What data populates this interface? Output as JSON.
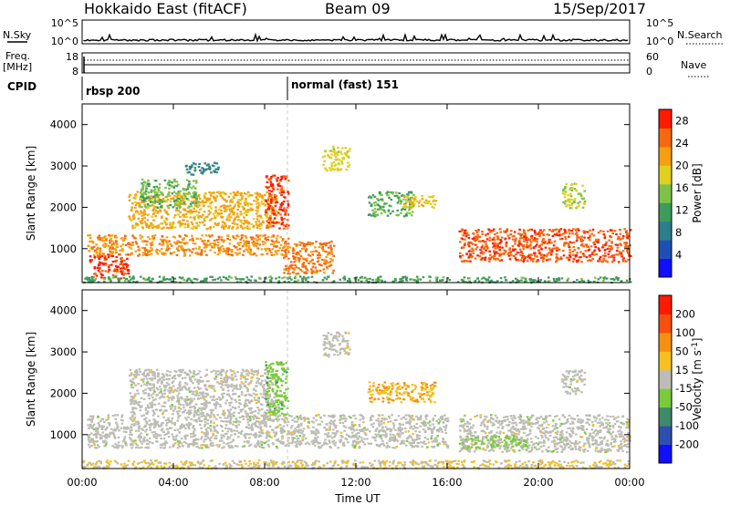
{
  "header": {
    "station": "Hokkaido East (fitACF)",
    "beam": "Beam 09",
    "date": "15/Sep/2017"
  },
  "strip": {
    "nsky_label": "N.Sky",
    "nsearch_label": "N.Search",
    "noise_ticks": [
      "10^5",
      "10^0"
    ],
    "freq_label": "Freq.",
    "freq_unit": "[MHz]",
    "freq_ticks": [
      "18",
      "8"
    ],
    "nave_label": "Nave",
    "nave_ticks": [
      "60",
      "0"
    ],
    "cpid_label": "CPID",
    "cpid_segments": [
      {
        "name": "rbsp 200",
        "start_hour": 0
      },
      {
        "name": "normal (fast) 151",
        "start_hour": 9
      }
    ]
  },
  "axes": {
    "ylabel": "Slant Range [km]",
    "xlabel": "Time UT",
    "x_ticks": [
      "00:00",
      "04:00",
      "08:00",
      "12:00",
      "16:00",
      "20:00",
      "00:00"
    ],
    "y_ticks": [
      "1000",
      "2000",
      "3000",
      "4000"
    ]
  },
  "chart_data": [
    {
      "type": "heatmap",
      "panel": "power",
      "xlim_hours": [
        0,
        24
      ],
      "ylim_km": [
        180,
        4500
      ],
      "colorbar": {
        "label": "Power [dB]",
        "ticks": [
          "4",
          "8",
          "12",
          "16",
          "20",
          "24",
          "28"
        ],
        "colors": [
          "#1010ff",
          "#1f4fb5",
          "#2f7d8a",
          "#3f9a5c",
          "#7fc24a",
          "#e0d020",
          "#f5a010",
          "#f56a10",
          "#ff1a00"
        ],
        "range": [
          0,
          30
        ]
      },
      "regions": [
        {
          "t0": 0.3,
          "t1": 2.0,
          "r0": 300,
          "r1": 900,
          "level": 27
        },
        {
          "t0": 0.2,
          "t1": 9.0,
          "r0": 850,
          "r1": 1350,
          "level": 23
        },
        {
          "t0": 2.0,
          "t1": 8.5,
          "r0": 1500,
          "r1": 2400,
          "level": 21
        },
        {
          "t0": 8.0,
          "t1": 9.0,
          "r0": 1500,
          "r1": 2800,
          "level": 27
        },
        {
          "t0": 8.8,
          "t1": 11.0,
          "r0": 400,
          "r1": 1200,
          "level": 24
        },
        {
          "t0": 4.5,
          "t1": 6.0,
          "r0": 2800,
          "r1": 3100,
          "level": 9
        },
        {
          "t0": 2.5,
          "t1": 5.0,
          "r0": 2000,
          "r1": 2700,
          "level": 14
        },
        {
          "t0": 10.5,
          "t1": 11.7,
          "r0": 2900,
          "r1": 3500,
          "level": 18
        },
        {
          "t0": 12.5,
          "t1": 14.5,
          "r0": 1800,
          "r1": 2400,
          "level": 13
        },
        {
          "t0": 14.0,
          "t1": 15.5,
          "r0": 2000,
          "r1": 2300,
          "level": 19
        },
        {
          "t0": 16.5,
          "t1": 24.0,
          "r0": 700,
          "r1": 1500,
          "level": 26
        },
        {
          "t0": 21.0,
          "t1": 22.0,
          "r0": 2000,
          "r1": 2600,
          "level": 17
        },
        {
          "t0": 0.0,
          "t1": 16.0,
          "r0": 200,
          "r1": 350,
          "level": 12
        },
        {
          "t0": 16.0,
          "t1": 24.0,
          "r0": 200,
          "r1": 330,
          "level": 12
        }
      ]
    },
    {
      "type": "heatmap",
      "panel": "velocity",
      "xlim_hours": [
        0,
        24
      ],
      "ylim_km": [
        180,
        4500
      ],
      "colorbar": {
        "label": "Velocity [m s",
        "label_sup": "-1",
        "label_close": "]",
        "ticks": [
          "200",
          "100",
          "50",
          "15",
          "-15",
          "-50",
          "-100",
          "-200"
        ],
        "colors": [
          "#1010ff",
          "#2f4fb0",
          "#3f8a6a",
          "#7acb3a",
          "#bdbdb5",
          "#f5c020",
          "#f59010",
          "#f55010",
          "#ff1a00"
        ],
        "range": [
          -250,
          250
        ]
      },
      "regions": [
        {
          "t0": 0.2,
          "t1": 16.0,
          "r0": 700,
          "r1": 1500,
          "level": 0
        },
        {
          "t0": 2.0,
          "t1": 8.5,
          "r0": 1500,
          "r1": 2600,
          "level": 0
        },
        {
          "t0": 8.0,
          "t1": 9.0,
          "r0": 1500,
          "r1": 2800,
          "level": -60
        },
        {
          "t0": 10.5,
          "t1": 11.7,
          "r0": 2900,
          "r1": 3500,
          "level": 5
        },
        {
          "t0": 12.5,
          "t1": 15.5,
          "r0": 1800,
          "r1": 2300,
          "level": 80
        },
        {
          "t0": 16.5,
          "t1": 24.0,
          "r0": 600,
          "r1": 1500,
          "level": 0
        },
        {
          "t0": 16.5,
          "t1": 19.5,
          "r0": 700,
          "r1": 1000,
          "level": -40
        },
        {
          "t0": 21.0,
          "t1": 22.0,
          "r0": 2000,
          "r1": 2600,
          "level": 0
        },
        {
          "t0": 0.0,
          "t1": 24.0,
          "r0": 200,
          "r1": 400,
          "level": 30
        }
      ]
    }
  ]
}
